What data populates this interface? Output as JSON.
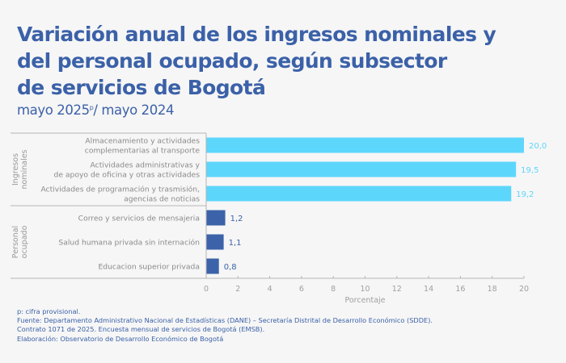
{
  "header": {
    "title_lines": [
      "Variación anual de los ingresos nominales y",
      "del personal ocupado, según subsector",
      "de servicios de Bogotá"
    ],
    "subtitle_prefix": "mayo 2025",
    "subtitle_sup": "p",
    "subtitle_suffix": "/ mayo 2024"
  },
  "colors": {
    "title": "#3b61a8",
    "ingresos_bar": "#5dd6fc",
    "ingresos_label": "#5dd6fc",
    "personal_bar": "#3c63a9",
    "personal_label": "#3c63a9",
    "axis": "#b5b5b5"
  },
  "chart_data": {
    "type": "bar",
    "orientation": "horizontal",
    "title": "Variación anual de los ingresos nominales y del personal ocupado, según subsector de servicios de Bogotá",
    "subtitle": "mayo 2025p/ mayo 2024",
    "xlabel": "Porcentaje",
    "ylabel": "",
    "xlim": [
      0,
      20
    ],
    "xticks": [
      "0",
      "2",
      "4",
      "6",
      "8",
      "10",
      "12",
      "14",
      "16",
      "18",
      "20"
    ],
    "grid": false,
    "groups": [
      {
        "name": "Ingresos nominales",
        "name_lines": [
          "Ingresos",
          "nominales"
        ],
        "categories": [
          {
            "lines": [
              "Almacenamiento y actividades",
              "complementarias al transporte"
            ],
            "value": 20.0,
            "label": "20,0"
          },
          {
            "lines": [
              "Actividades administrativas y",
              "de apoyo de oficina y otras actividades"
            ],
            "value": 19.5,
            "label": "19,5"
          },
          {
            "lines": [
              "Actividades de programación y trasmisión,",
              "agencias de noticias"
            ],
            "value": 19.2,
            "label": "19,2"
          }
        ]
      },
      {
        "name": "Personal ocupado",
        "name_lines": [
          "Personal",
          "ocupado"
        ],
        "categories": [
          {
            "lines": [
              "Correo y servicios de mensajeria"
            ],
            "value": 1.2,
            "label": "1,2"
          },
          {
            "lines": [
              "Salud humana privada sin internación"
            ],
            "value": 1.1,
            "label": "1,1"
          },
          {
            "lines": [
              "Educacion superior privada"
            ],
            "value": 0.8,
            "label": "0,8"
          }
        ]
      }
    ]
  },
  "footnotes": [
    "p: cifra provisional.",
    "Fuente: Departamento Administrativo Nacional de Estadísticas (DANE) – Secretaría Distrital de Desarrollo Económico (SDDE).",
    "Contrato 1071 de 2025. Encuesta mensual de servicios de Bogotá (EMSB).",
    "Elaboración: Observatorio de Desarrollo Económico de Bogotá"
  ]
}
